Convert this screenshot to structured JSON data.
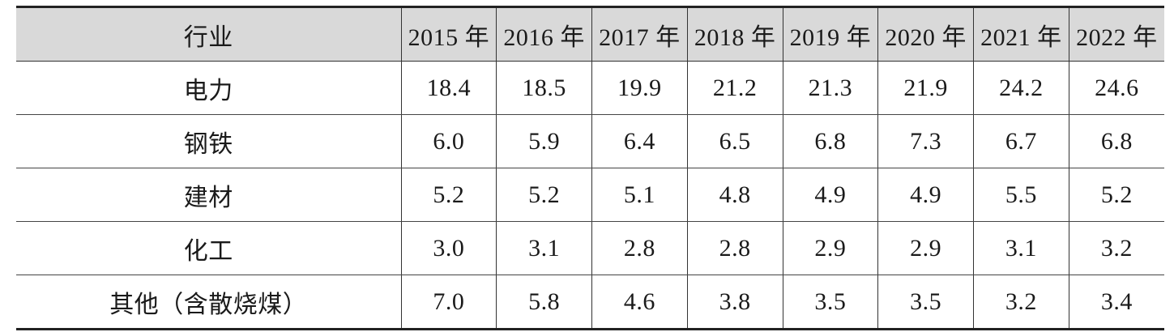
{
  "table": {
    "header": [
      "行业",
      "2015 年",
      "2016 年",
      "2017 年",
      "2018 年",
      "2019 年",
      "2020 年",
      "2021 年",
      "2022 年"
    ],
    "rows": [
      [
        "电力",
        "18.4",
        "18.5",
        "19.9",
        "21.2",
        "21.3",
        "21.9",
        "24.2",
        "24.6"
      ],
      [
        "钢铁",
        "6.0",
        "5.9",
        "6.4",
        "6.5",
        "6.8",
        "7.3",
        "6.7",
        "6.8"
      ],
      [
        "建材",
        "5.2",
        "5.2",
        "5.1",
        "4.8",
        "4.9",
        "4.9",
        "5.5",
        "5.2"
      ],
      [
        "化工",
        "3.0",
        "3.1",
        "2.8",
        "2.8",
        "2.9",
        "2.9",
        "3.1",
        "3.2"
      ],
      [
        "其他（含散烧煤）",
        "7.0",
        "5.8",
        "4.6",
        "3.8",
        "3.5",
        "3.5",
        "3.2",
        "3.4"
      ]
    ]
  }
}
